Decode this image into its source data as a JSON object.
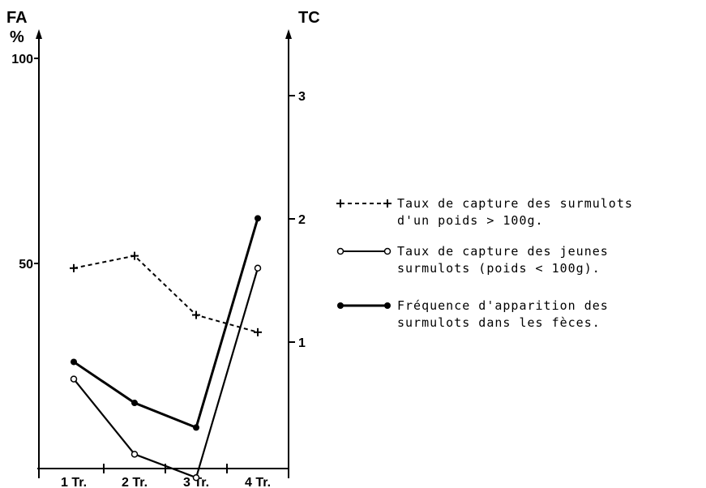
{
  "chart_data": {
    "type": "line",
    "left_axis": {
      "title": "FA",
      "unit": "%",
      "ticks": [
        "100",
        "50"
      ],
      "ylim": [
        0,
        100
      ]
    },
    "right_axis": {
      "title": "TC",
      "ticks": [
        "1",
        "2",
        "3"
      ],
      "ylim": [
        -0.3,
        3.5
      ]
    },
    "categories": [
      "1 Tr.",
      "2 Tr.",
      "3 Tr.",
      "4 Tr."
    ],
    "series": [
      {
        "name_lines": [
          "Taux de capture des surmulots",
          "d'un poids > 100g."
        ],
        "axis": "right",
        "marker": "plus",
        "style": "dashed",
        "values": [
          1.6,
          1.7,
          1.22,
          1.08
        ]
      },
      {
        "name_lines": [
          "Taux de capture des jeunes",
          "surmulots (poids < 100g)."
        ],
        "axis": "right",
        "marker": "open-circle",
        "style": "solid",
        "values": [
          0.7,
          0.09,
          -0.1,
          1.6
        ]
      },
      {
        "name_lines": [
          "Fréquence d'apparition des",
          "surmulots dans les fèces."
        ],
        "axis": "left",
        "marker": "filled-circle",
        "style": "thick",
        "values": [
          26,
          16,
          10,
          61
        ]
      }
    ],
    "legend_position": "right"
  }
}
